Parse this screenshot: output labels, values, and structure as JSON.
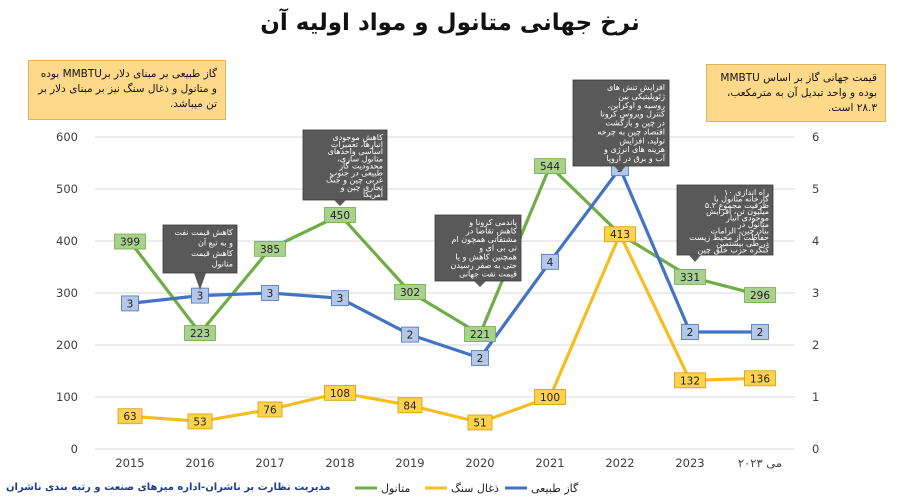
{
  "title": "نرخ جهانی متانول و مواد اولیه آن",
  "notes": {
    "left": "گاز طبیعی بر مبنای دلار برMMBTU بوده و متانول و ذغال سنگ نیز بر مبنای دلار بر تن میباشد.",
    "right": "قیمت جهانی گاز بر اساس MMBTU بوده و واحد تبدیل آن به مترمکعب، ۲۸.۳ است."
  },
  "footer": "مدیریت نظارت بر ناشران-اداره میزهای صنعت و رتبه بندی ناشران",
  "colors": {
    "methanol": "#70ad47",
    "coal": "#f5bd1f",
    "gas": "#4472c4",
    "callout": "#595959",
    "grid": "#d9d9d9",
    "axis_text": "#404040"
  },
  "callouts": [
    {
      "x": "2016",
      "text": "کاهش قیمت نفت و به تبع آن کاهش قیمت متانول"
    },
    {
      "x": "2018",
      "text": "کاهش موجودی انبارها، تعمیرات اساسی واحدهای متانول سازی، محدودیت گاز طبیعی در جنوب غربی چین و جنگ تجاری چین و آمریکا"
    },
    {
      "x": "2020",
      "text": "پاندمی کرونا و کاهش تقاضا در مشتقاتی همچون ام تی بی ای و همچنین کاهش و یا حتی به صفر رسیدن قیمت نفت جهانی"
    },
    {
      "x": "2022",
      "text": "افزایش تنش های ژئوپلیتیکی بین روسیه و اوکراین، کنترل ویروس کرونا در چین و بازگشت اقتصاد چین به چرخه تولید، افزایش هزینه های انرژی و آب و برق در اروپا"
    },
    {
      "x": "می ۲۰۲۳",
      "text": "راه اندازی ۱۰ کارخانه متانول با ظرفیت مجموع ۵.۳ میلیون تن، افزایش موجودی انبار متانول در بنادرچین، الزامات حفاظت از محیط زیست در طی بیستمین کنگره حزب خلق چین"
    }
  ],
  "chart_data": {
    "type": "line",
    "title": "نرخ جهانی متانول و مواد اولیه آن",
    "categories": [
      "2015",
      "2016",
      "2017",
      "2018",
      "2019",
      "2020",
      "2021",
      "2022",
      "2023",
      "می ۲۰۲۳"
    ],
    "y_left": {
      "min": 0,
      "max": 600,
      "ticks": [
        0,
        100,
        200,
        300,
        400,
        500,
        600
      ]
    },
    "y_right": {
      "min": 0,
      "max": 6,
      "ticks": [
        0,
        1,
        2,
        3,
        4,
        5,
        6
      ]
    },
    "grid": true,
    "legend_position": "bottom",
    "series": [
      {
        "name": "متانول",
        "axis": "left",
        "color": "#70ad47",
        "values": [
          399,
          223,
          385,
          450,
          302,
          221,
          544,
          413,
          331,
          296
        ],
        "labels": [
          "399",
          "223",
          "385",
          "450",
          "302",
          "221",
          "544",
          "",
          "331",
          "296"
        ]
      },
      {
        "name": "ذغال سنگ",
        "axis": "left",
        "color": "#f5bd1f",
        "values": [
          63,
          53,
          76,
          108,
          84,
          51,
          100,
          413,
          132,
          136
        ],
        "labels": [
          "63",
          "53",
          "76",
          "108",
          "84",
          "51",
          "100",
          "413",
          "132",
          "136"
        ]
      },
      {
        "name": "گاز طبیعی",
        "axis": "right",
        "color": "#4472c4",
        "values": [
          2.8,
          2.95,
          3,
          2.9,
          2.2,
          1.75,
          3.6,
          5.4,
          2.25,
          2.25
        ],
        "labels": [
          "3",
          "3",
          "3",
          "3",
          "2",
          "2",
          "4",
          "5",
          "2",
          "2"
        ]
      }
    ]
  }
}
